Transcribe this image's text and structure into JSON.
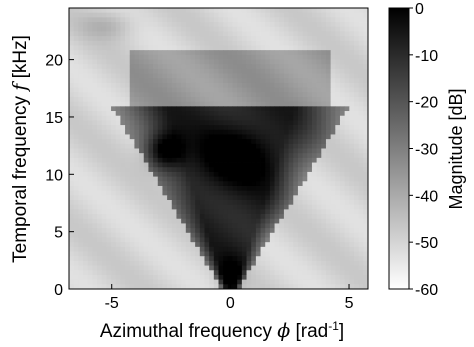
{
  "chart_data": {
    "type": "heatmap",
    "title": "",
    "xlabel": "Azimuthal frequency",
    "xlabel_symbol": "ϕ",
    "xlabel_unit_base": "[rad",
    "xlabel_unit_exp": "-1",
    "xlabel_unit_close": "]",
    "ylabel": "Temporal frequency",
    "ylabel_symbol": "f",
    "ylabel_unit": "[kHz]",
    "xlim": [
      -6.8,
      5.8
    ],
    "ylim": [
      0,
      24.5
    ],
    "xticks": [
      -5,
      0,
      5
    ],
    "xtick_labels": [
      "-5",
      "0",
      "5"
    ],
    "yticks": [
      0,
      5,
      10,
      15,
      20
    ],
    "ytick_labels": [
      "0",
      "5",
      "10",
      "15",
      "20"
    ],
    "colorbar": {
      "label": "Magnitude [dB]",
      "range": [
        -60,
        0
      ],
      "ticks": [
        0,
        -10,
        -20,
        -30,
        -40,
        -50,
        -60
      ],
      "tick_labels": [
        "0",
        "-10",
        "-20",
        "-30",
        "-40",
        "-50",
        "-60"
      ],
      "colormap": "gray_r",
      "low_color": "#ffffff",
      "high_color": "#000000"
    },
    "features": {
      "cone_apex": {
        "x": 0,
        "y": 0.5
      },
      "cone_half_width_at_12kHz": 3.5,
      "dark_blob_left": {
        "x": -2.8,
        "y": 12,
        "db": -3
      },
      "dark_blob_center": {
        "x": 0.3,
        "y": 11.5,
        "db": -6
      },
      "band_top_kHz": 16,
      "inner_level_db": -8,
      "outside_level_db": -50
    },
    "grid": false,
    "legend": "none"
  }
}
